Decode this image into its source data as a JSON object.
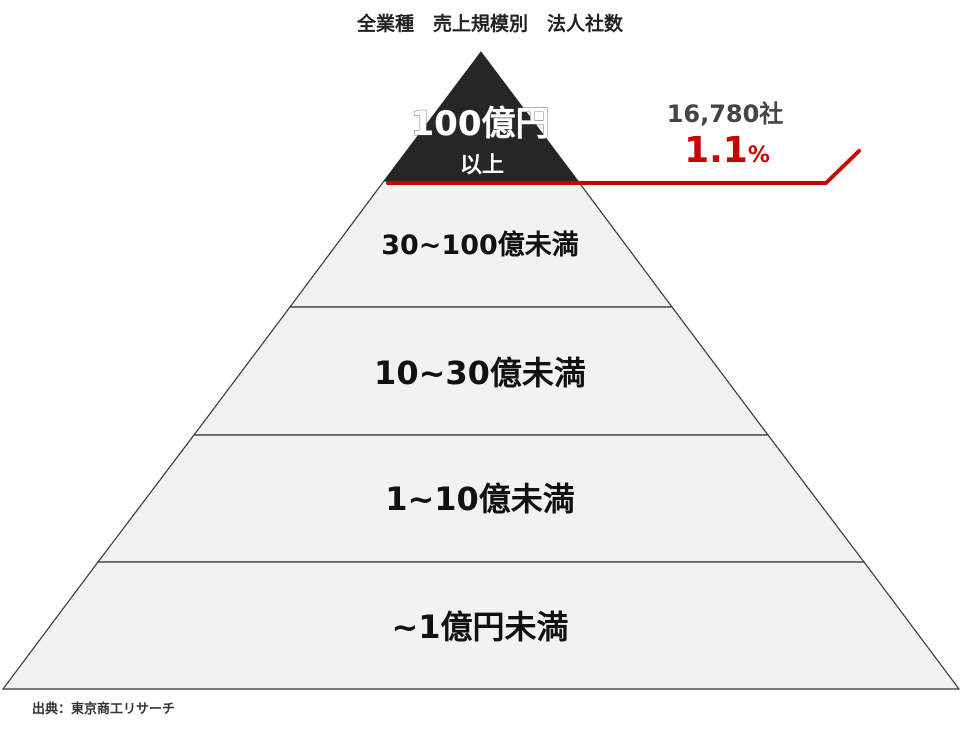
{
  "title": "全業種　売上規模別　法人社数",
  "tiers": [
    {
      "label_line1": "100億円",
      "label_line2": "以上"
    },
    {
      "label": "30~100億未満"
    },
    {
      "label": "10~30億未満"
    },
    {
      "label": "1~10億未満"
    },
    {
      "label": "~1億円未満"
    }
  ],
  "callout": {
    "count": "16,780社",
    "percent": "1.1",
    "percent_unit": "%"
  },
  "source": "出典：東京商工リサーチ",
  "colors": {
    "top_tier": "#262626",
    "tier_fill": "#f2f2f2",
    "outline": "#333333",
    "accent": "#cc0000",
    "count_text": "#444444"
  }
}
